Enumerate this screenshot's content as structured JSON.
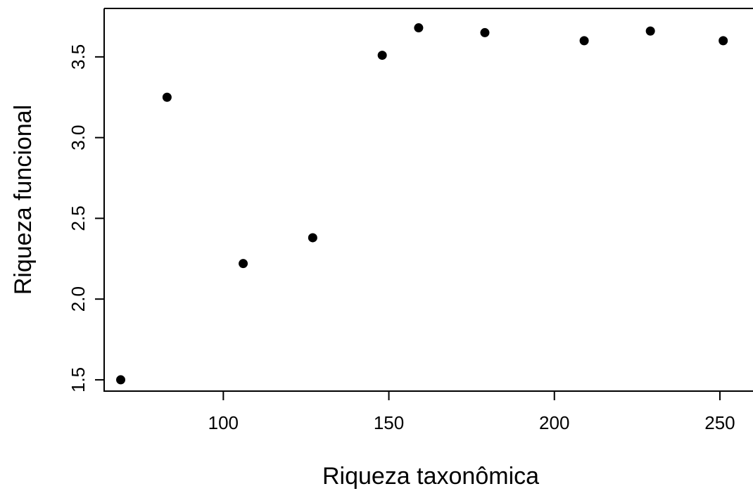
{
  "chart_data": {
    "type": "scatter",
    "title": "",
    "xlabel": "Riqueza taxonômica",
    "ylabel": "Riqueza funcional",
    "xlim": [
      64,
      260
    ],
    "ylim": [
      1.43,
      3.8
    ],
    "x_ticks": [
      100,
      150,
      200,
      250
    ],
    "y_ticks": [
      1.5,
      2.0,
      2.5,
      3.0,
      3.5
    ],
    "x_tick_labels": [
      "100",
      "150",
      "200",
      "250"
    ],
    "y_tick_labels": [
      "1.5",
      "2.0",
      "2.5",
      "3.0",
      "3.5"
    ],
    "grid": false,
    "legend": "none",
    "marker_color": "#000000",
    "points": [
      {
        "x": 69,
        "y": 1.5
      },
      {
        "x": 83,
        "y": 3.25
      },
      {
        "x": 106,
        "y": 2.22
      },
      {
        "x": 127,
        "y": 2.38
      },
      {
        "x": 148,
        "y": 3.51
      },
      {
        "x": 159,
        "y": 3.68
      },
      {
        "x": 179,
        "y": 3.65
      },
      {
        "x": 209,
        "y": 3.6
      },
      {
        "x": 229,
        "y": 3.66
      },
      {
        "x": 251,
        "y": 3.6
      }
    ]
  }
}
